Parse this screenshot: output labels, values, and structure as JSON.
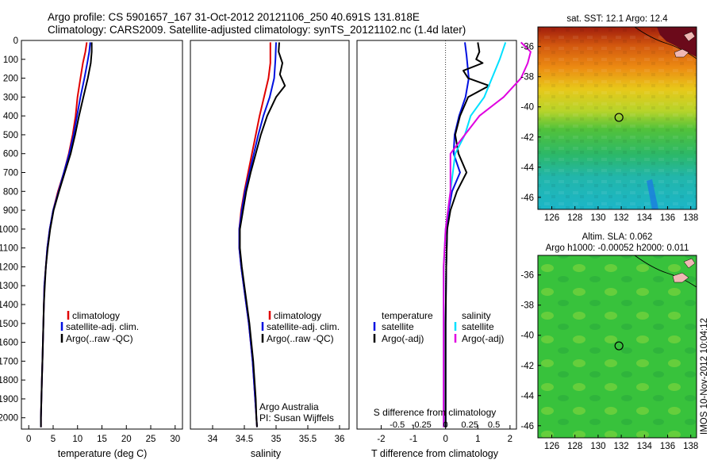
{
  "header": {
    "line1": "Argo profile: CS 5901657_167 31-Oct-2012 20121106_250 40.691S 131.818E",
    "line2": "Climatology: CARS2009. Satellite-adjusted climatology: synTS_20121102.nc (1.4d later)"
  },
  "colors": {
    "climatology": "#e00000",
    "satellite": "#0010e0",
    "argo": "#000000",
    "sat_diff": "#00e0ff",
    "argo_diff": "#e000e0",
    "map_ssl_green": "#35c53a"
  },
  "chart_data": [
    {
      "type": "line",
      "id": "temperature",
      "xlabel": "temperature (deg C)",
      "xlim": [
        -1.5,
        31.5
      ],
      "xticks": [
        0,
        5,
        10,
        15,
        20,
        25,
        30
      ],
      "ylim": [
        0,
        2060
      ],
      "yticks": [
        0,
        100,
        200,
        300,
        400,
        500,
        600,
        700,
        800,
        900,
        1000,
        1100,
        1200,
        1300,
        1400,
        1500,
        1600,
        1700,
        1800,
        1900,
        2000
      ],
      "legend": [
        "climatology",
        "satellite-adj. clim.",
        "Argo(..raw -QC)"
      ],
      "series": [
        {
          "name": "climatology",
          "color": "#e00000",
          "points": [
            [
              11.9,
              10
            ],
            [
              11.6,
              60
            ],
            [
              11.1,
              120
            ],
            [
              10.6,
              200
            ],
            [
              10.0,
              300
            ],
            [
              9.6,
              400
            ],
            [
              9.0,
              500
            ],
            [
              8.2,
              600
            ],
            [
              7.2,
              700
            ],
            [
              6.0,
              800
            ],
            [
              5.0,
              900
            ],
            [
              4.3,
              1000
            ],
            [
              3.8,
              1100
            ],
            [
              3.5,
              1200
            ],
            [
              3.2,
              1300
            ],
            [
              3.1,
              1400
            ],
            [
              3.0,
              1500
            ],
            [
              2.9,
              1600
            ],
            [
              2.8,
              1700
            ],
            [
              2.7,
              1800
            ],
            [
              2.6,
              1900
            ],
            [
              2.5,
              2000
            ],
            [
              2.5,
              2050
            ]
          ]
        },
        {
          "name": "satellite-adj. clim.",
          "color": "#0010e0",
          "points": [
            [
              12.6,
              10
            ],
            [
              12.4,
              60
            ],
            [
              12.0,
              120
            ],
            [
              11.4,
              200
            ],
            [
              10.6,
              300
            ],
            [
              9.9,
              400
            ],
            [
              9.2,
              500
            ],
            [
              8.3,
              600
            ],
            [
              7.2,
              700
            ],
            [
              6.1,
              800
            ],
            [
              5.0,
              900
            ],
            [
              4.3,
              1000
            ],
            [
              3.8,
              1100
            ],
            [
              3.5,
              1200
            ],
            [
              3.2,
              1300
            ],
            [
              3.1,
              1400
            ],
            [
              3.0,
              1500
            ],
            [
              2.9,
              1600
            ],
            [
              2.8,
              1700
            ],
            [
              2.7,
              1800
            ],
            [
              2.6,
              1900
            ],
            [
              2.5,
              2000
            ],
            [
              2.5,
              2050
            ]
          ]
        },
        {
          "name": "Argo(..raw -QC)",
          "color": "#000000",
          "points": [
            [
              12.9,
              10
            ],
            [
              12.9,
              60
            ],
            [
              12.7,
              120
            ],
            [
              12.1,
              200
            ],
            [
              11.2,
              300
            ],
            [
              10.3,
              400
            ],
            [
              9.5,
              500
            ],
            [
              8.6,
              600
            ],
            [
              7.4,
              700
            ],
            [
              6.2,
              800
            ],
            [
              5.1,
              900
            ],
            [
              4.4,
              1000
            ],
            [
              3.9,
              1100
            ],
            [
              3.5,
              1200
            ],
            [
              3.3,
              1300
            ],
            [
              3.1,
              1400
            ],
            [
              3.0,
              1500
            ],
            [
              2.9,
              1600
            ],
            [
              2.8,
              1700
            ],
            [
              2.7,
              1800
            ],
            [
              2.6,
              1900
            ],
            [
              2.5,
              2000
            ],
            [
              2.5,
              2050
            ]
          ]
        }
      ]
    },
    {
      "type": "line",
      "id": "salinity",
      "xlabel": "salinity",
      "xlim": [
        33.65,
        36.15
      ],
      "xticks": [
        34,
        34.5,
        35,
        35.5,
        36
      ],
      "xticklabels": [
        "34",
        "34.5",
        "35",
        "35.5",
        "36"
      ],
      "ylim": [
        0,
        2060
      ],
      "legend": [
        "climatology",
        "satellite-adj. clim.",
        "Argo(..raw -QC)"
      ],
      "annotation": [
        "Argo Australia",
        "PI: Susan Wijffels"
      ],
      "series": [
        {
          "name": "climatology",
          "color": "#e00000",
          "points": [
            [
              34.91,
              10
            ],
            [
              34.91,
              120
            ],
            [
              34.88,
              200
            ],
            [
              34.81,
              300
            ],
            [
              34.74,
              400
            ],
            [
              34.68,
              500
            ],
            [
              34.62,
              600
            ],
            [
              34.56,
              700
            ],
            [
              34.5,
              800
            ],
            [
              34.45,
              900
            ],
            [
              34.42,
              1000
            ],
            [
              34.42,
              1100
            ],
            [
              34.45,
              1200
            ],
            [
              34.49,
              1300
            ],
            [
              34.53,
              1400
            ],
            [
              34.57,
              1500
            ],
            [
              34.6,
              1600
            ],
            [
              34.63,
              1700
            ],
            [
              34.65,
              1800
            ],
            [
              34.67,
              1900
            ],
            [
              34.69,
              2000
            ],
            [
              34.7,
              2050
            ]
          ]
        },
        {
          "name": "satellite-adj. clim.",
          "color": "#0010e0",
          "points": [
            [
              35.0,
              10
            ],
            [
              34.99,
              100
            ],
            [
              34.97,
              200
            ],
            [
              34.9,
              300
            ],
            [
              34.8,
              400
            ],
            [
              34.72,
              500
            ],
            [
              34.65,
              600
            ],
            [
              34.58,
              700
            ],
            [
              34.51,
              800
            ],
            [
              34.46,
              900
            ],
            [
              34.42,
              1000
            ],
            [
              34.42,
              1100
            ],
            [
              34.45,
              1200
            ],
            [
              34.49,
              1300
            ],
            [
              34.53,
              1400
            ],
            [
              34.57,
              1500
            ],
            [
              34.6,
              1600
            ],
            [
              34.63,
              1700
            ],
            [
              34.65,
              1800
            ],
            [
              34.67,
              1900
            ],
            [
              34.69,
              2000
            ],
            [
              34.7,
              2050
            ]
          ]
        },
        {
          "name": "Argo(..raw -QC)",
          "color": "#000000",
          "points": [
            [
              35.05,
              10
            ],
            [
              35.04,
              60
            ],
            [
              35.1,
              120
            ],
            [
              35.06,
              180
            ],
            [
              35.14,
              240
            ],
            [
              35.0,
              300
            ],
            [
              34.86,
              400
            ],
            [
              34.76,
              500
            ],
            [
              34.68,
              600
            ],
            [
              34.6,
              700
            ],
            [
              34.53,
              800
            ],
            [
              34.48,
              900
            ],
            [
              34.43,
              1000
            ],
            [
              34.43,
              1100
            ],
            [
              34.46,
              1200
            ],
            [
              34.5,
              1300
            ],
            [
              34.54,
              1400
            ],
            [
              34.58,
              1500
            ],
            [
              34.61,
              1600
            ],
            [
              34.64,
              1700
            ],
            [
              34.66,
              1800
            ],
            [
              34.68,
              1900
            ],
            [
              34.69,
              2000
            ],
            [
              34.7,
              2050
            ]
          ]
        }
      ]
    },
    {
      "type": "line",
      "id": "difference",
      "xlabel": "T difference from climatology",
      "xlim": [
        -2.75,
        2.2
      ],
      "xticks": [
        -2,
        -1,
        0,
        1,
        2
      ],
      "top_axis_label": "S difference from climatology",
      "top_ticks": [
        -0.5,
        -0.25,
        0,
        0.25,
        0.5
      ],
      "top_ticklabels": [
        "-0.5",
        "-0.25",
        "0",
        "0.25",
        "0.5"
      ],
      "legend_temperature": [
        "temperature",
        "satellite",
        "Argo(-adj)"
      ],
      "legend_salinity": [
        "salinity",
        "satellite",
        "Argo(-adj)"
      ],
      "series": [
        {
          "name": "satellite",
          "quantity": "temperature",
          "color": "#0010e0",
          "points": [
            [
              0.6,
              10
            ],
            [
              0.65,
              80
            ],
            [
              0.72,
              200
            ],
            [
              0.62,
              300
            ],
            [
              0.42,
              400
            ],
            [
              0.28,
              500
            ],
            [
              0.25,
              600
            ],
            [
              0.45,
              700
            ],
            [
              0.2,
              800
            ],
            [
              0.1,
              900
            ],
            [
              0.05,
              1000
            ],
            [
              0.02,
              1200
            ],
            [
              0.0,
              1500
            ],
            [
              0.0,
              2050
            ]
          ]
        },
        {
          "name": "Argo(-adj)",
          "quantity": "temperature",
          "color": "#000000",
          "points": [
            [
              1.0,
              10
            ],
            [
              1.05,
              60
            ],
            [
              0.95,
              100
            ],
            [
              1.15,
              120
            ],
            [
              0.55,
              160
            ],
            [
              0.7,
              200
            ],
            [
              1.35,
              240
            ],
            [
              0.7,
              300
            ],
            [
              0.45,
              400
            ],
            [
              0.3,
              500
            ],
            [
              0.4,
              600
            ],
            [
              0.65,
              700
            ],
            [
              0.35,
              800
            ],
            [
              0.15,
              900
            ],
            [
              0.05,
              1000
            ],
            [
              0.02,
              1200
            ],
            [
              0.0,
              1500
            ],
            [
              0.0,
              2050
            ]
          ]
        },
        {
          "name": "satellite",
          "quantity": "salinity",
          "color": "#00e0ff",
          "points": [
            [
              0.62,
              10
            ],
            [
              0.56,
              100
            ],
            [
              0.48,
              200
            ],
            [
              0.4,
              300
            ],
            [
              0.26,
              400
            ],
            [
              0.2,
              500
            ],
            [
              0.1,
              600
            ],
            [
              0.05,
              800
            ],
            [
              0.0,
              1000
            ],
            [
              -0.02,
              1200
            ],
            [
              -0.02,
              1600
            ],
            [
              -0.02,
              2050
            ]
          ]
        },
        {
          "name": "Argo(-adj)",
          "quantity": "salinity",
          "color": "#e000e0",
          "points": [
            [
              0.78,
              10
            ],
            [
              0.88,
              60
            ],
            [
              0.85,
              120
            ],
            [
              0.78,
              200
            ],
            [
              0.6,
              300
            ],
            [
              0.35,
              400
            ],
            [
              0.2,
              500
            ],
            [
              0.05,
              600
            ],
            [
              0.05,
              800
            ],
            [
              0.0,
              1000
            ],
            [
              -0.02,
              1200
            ],
            [
              -0.02,
              1600
            ],
            [
              -0.02,
              2050
            ]
          ]
        }
      ]
    },
    {
      "type": "heatmap",
      "id": "sst_map",
      "title": "sat. SST: 12.1  Argo: 12.4",
      "xticks": [
        126,
        128,
        130,
        132,
        134,
        136,
        138
      ],
      "yticks": [
        -36,
        -38,
        -40,
        -42,
        -44,
        -46
      ],
      "yticklabels": [
        "-36",
        "-38",
        "-40",
        "-42",
        "-44",
        "-46"
      ],
      "xlim": [
        124.8,
        138.5
      ],
      "ylim": [
        -46.8,
        -34.7
      ],
      "marker": [
        131.8,
        -40.7
      ]
    },
    {
      "type": "heatmap",
      "id": "sla_map",
      "title_line1": "Altim. SLA: 0.062",
      "title_line2": "Argo h1000: -0.00052 h2000: 0.011",
      "xticks": [
        126,
        128,
        130,
        132,
        134,
        136,
        138
      ],
      "yticks": [
        -36,
        -38,
        -40,
        -42,
        -44,
        -46
      ],
      "yticklabels": [
        "-36",
        "-38",
        "-40",
        "-42",
        "-44",
        "-46"
      ],
      "xlim": [
        124.8,
        138.5
      ],
      "ylim": [
        -46.8,
        -34.7
      ],
      "marker": [
        131.8,
        -40.7
      ]
    }
  ],
  "footer_stamp": "IMOS 10-Nov-2012 10:04:12"
}
